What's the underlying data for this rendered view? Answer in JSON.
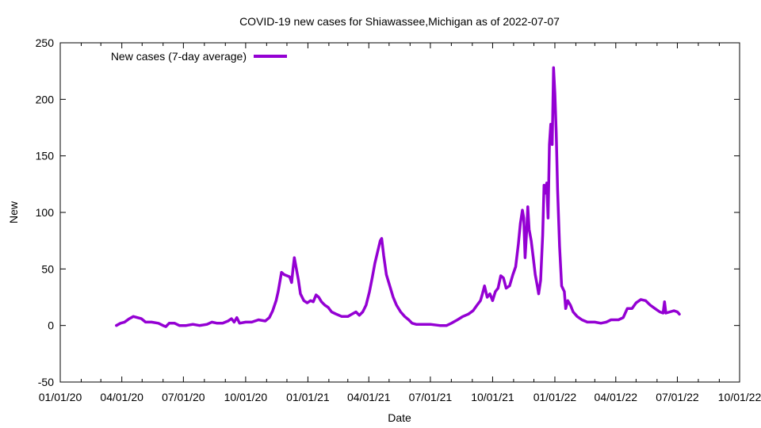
{
  "chart_data": {
    "type": "line",
    "title": "COVID-19 new cases for Shiawassee,Michigan as of 2022-07-07",
    "xlabel": "Date",
    "ylabel": "New",
    "xlim": [
      "2020-01-01",
      "2022-10-01"
    ],
    "ylim": [
      -50,
      250
    ],
    "x_ticks": [
      "01/01/20",
      "04/01/20",
      "07/01/20",
      "10/01/20",
      "01/01/21",
      "04/01/21",
      "07/01/21",
      "10/01/21",
      "01/01/22",
      "04/01/22",
      "07/01/22",
      "10/01/22"
    ],
    "y_ticks": [
      "-50",
      "0",
      "50",
      "100",
      "150",
      "200",
      "250"
    ],
    "grid": false,
    "legend_position": "top-left",
    "series": [
      {
        "name": "New cases (7-day average)",
        "color": "#9400d3",
        "points": [
          [
            "2020-03-24",
            0
          ],
          [
            "2020-03-30",
            2
          ],
          [
            "2020-04-05",
            3
          ],
          [
            "2020-04-12",
            6
          ],
          [
            "2020-04-18",
            8
          ],
          [
            "2020-04-24",
            7
          ],
          [
            "2020-04-30",
            6
          ],
          [
            "2020-05-06",
            3
          ],
          [
            "2020-05-15",
            3
          ],
          [
            "2020-05-25",
            2
          ],
          [
            "2020-06-01",
            0
          ],
          [
            "2020-06-05",
            -1
          ],
          [
            "2020-06-10",
            2
          ],
          [
            "2020-06-18",
            2
          ],
          [
            "2020-06-25",
            0
          ],
          [
            "2020-07-05",
            0
          ],
          [
            "2020-07-15",
            1
          ],
          [
            "2020-07-25",
            0
          ],
          [
            "2020-08-05",
            1
          ],
          [
            "2020-08-12",
            3
          ],
          [
            "2020-08-20",
            2
          ],
          [
            "2020-08-28",
            2
          ],
          [
            "2020-09-05",
            4
          ],
          [
            "2020-09-10",
            6
          ],
          [
            "2020-09-14",
            3
          ],
          [
            "2020-09-18",
            7
          ],
          [
            "2020-09-22",
            2
          ],
          [
            "2020-10-01",
            3
          ],
          [
            "2020-10-10",
            3
          ],
          [
            "2020-10-20",
            5
          ],
          [
            "2020-10-30",
            4
          ],
          [
            "2020-11-05",
            7
          ],
          [
            "2020-11-10",
            13
          ],
          [
            "2020-11-15",
            22
          ],
          [
            "2020-11-18",
            30
          ],
          [
            "2020-11-21",
            40
          ],
          [
            "2020-11-23",
            47
          ],
          [
            "2020-11-27",
            45
          ],
          [
            "2020-12-01",
            44
          ],
          [
            "2020-12-05",
            43
          ],
          [
            "2020-12-08",
            38
          ],
          [
            "2020-12-10",
            50
          ],
          [
            "2020-12-12",
            60
          ],
          [
            "2020-12-15",
            50
          ],
          [
            "2020-12-18",
            40
          ],
          [
            "2020-12-21",
            28
          ],
          [
            "2020-12-26",
            22
          ],
          [
            "2020-12-31",
            20
          ],
          [
            "2021-01-05",
            22
          ],
          [
            "2021-01-09",
            21
          ],
          [
            "2021-01-13",
            27
          ],
          [
            "2021-01-17",
            25
          ],
          [
            "2021-01-21",
            21
          ],
          [
            "2021-01-26",
            18
          ],
          [
            "2021-01-31",
            16
          ],
          [
            "2021-02-05",
            12
          ],
          [
            "2021-02-12",
            10
          ],
          [
            "2021-02-20",
            8
          ],
          [
            "2021-03-01",
            8
          ],
          [
            "2021-03-07",
            10
          ],
          [
            "2021-03-13",
            12
          ],
          [
            "2021-03-18",
            9
          ],
          [
            "2021-03-23",
            12
          ],
          [
            "2021-03-28",
            18
          ],
          [
            "2021-04-02",
            30
          ],
          [
            "2021-04-06",
            42
          ],
          [
            "2021-04-10",
            55
          ],
          [
            "2021-04-14",
            65
          ],
          [
            "2021-04-18",
            75
          ],
          [
            "2021-04-20",
            77
          ],
          [
            "2021-04-23",
            62
          ],
          [
            "2021-04-27",
            45
          ],
          [
            "2021-05-02",
            35
          ],
          [
            "2021-05-07",
            25
          ],
          [
            "2021-05-12",
            18
          ],
          [
            "2021-05-18",
            12
          ],
          [
            "2021-05-24",
            8
          ],
          [
            "2021-05-30",
            5
          ],
          [
            "2021-06-04",
            2
          ],
          [
            "2021-06-10",
            1
          ],
          [
            "2021-06-20",
            1
          ],
          [
            "2021-07-01",
            1
          ],
          [
            "2021-07-15",
            0
          ],
          [
            "2021-07-25",
            0
          ],
          [
            "2021-08-01",
            2
          ],
          [
            "2021-08-10",
            5
          ],
          [
            "2021-08-18",
            8
          ],
          [
            "2021-08-26",
            10
          ],
          [
            "2021-09-02",
            13
          ],
          [
            "2021-09-08",
            18
          ],
          [
            "2021-09-13",
            22
          ],
          [
            "2021-09-16",
            28
          ],
          [
            "2021-09-19",
            35
          ],
          [
            "2021-09-23",
            25
          ],
          [
            "2021-09-27",
            28
          ],
          [
            "2021-10-01",
            22
          ],
          [
            "2021-10-05",
            30
          ],
          [
            "2021-10-09",
            33
          ],
          [
            "2021-10-13",
            44
          ],
          [
            "2021-10-17",
            42
          ],
          [
            "2021-10-21",
            33
          ],
          [
            "2021-10-26",
            35
          ],
          [
            "2021-10-31",
            45
          ],
          [
            "2021-11-04",
            52
          ],
          [
            "2021-11-08",
            72
          ],
          [
            "2021-11-11",
            90
          ],
          [
            "2021-11-14",
            102
          ],
          [
            "2021-11-16",
            95
          ],
          [
            "2021-11-18",
            60
          ],
          [
            "2021-11-20",
            80
          ],
          [
            "2021-11-22",
            105
          ],
          [
            "2021-11-24",
            85
          ],
          [
            "2021-11-27",
            75
          ],
          [
            "2021-11-30",
            60
          ],
          [
            "2021-12-03",
            45
          ],
          [
            "2021-12-06",
            35
          ],
          [
            "2021-12-08",
            28
          ],
          [
            "2021-12-11",
            40
          ],
          [
            "2021-12-14",
            80
          ],
          [
            "2021-12-16",
            124
          ],
          [
            "2021-12-18",
            117
          ],
          [
            "2021-12-20",
            126
          ],
          [
            "2021-12-22",
            95
          ],
          [
            "2021-12-24",
            160
          ],
          [
            "2021-12-26",
            178
          ],
          [
            "2021-12-28",
            160
          ],
          [
            "2021-12-30",
            228
          ],
          [
            "2022-01-01",
            205
          ],
          [
            "2022-01-03",
            170
          ],
          [
            "2022-01-05",
            120
          ],
          [
            "2022-01-08",
            70
          ],
          [
            "2022-01-11",
            35
          ],
          [
            "2022-01-15",
            30
          ],
          [
            "2022-01-17",
            15
          ],
          [
            "2022-01-20",
            22
          ],
          [
            "2022-01-24",
            18
          ],
          [
            "2022-01-28",
            12
          ],
          [
            "2022-02-03",
            8
          ],
          [
            "2022-02-10",
            5
          ],
          [
            "2022-02-18",
            3
          ],
          [
            "2022-03-01",
            3
          ],
          [
            "2022-03-10",
            2
          ],
          [
            "2022-03-18",
            3
          ],
          [
            "2022-03-25",
            5
          ],
          [
            "2022-04-05",
            5
          ],
          [
            "2022-04-12",
            7
          ],
          [
            "2022-04-18",
            15
          ],
          [
            "2022-04-25",
            15
          ],
          [
            "2022-05-01",
            20
          ],
          [
            "2022-05-08",
            23
          ],
          [
            "2022-05-15",
            22
          ],
          [
            "2022-05-22",
            18
          ],
          [
            "2022-05-29",
            15
          ],
          [
            "2022-06-05",
            12
          ],
          [
            "2022-06-10",
            11
          ],
          [
            "2022-06-12",
            21
          ],
          [
            "2022-06-14",
            11
          ],
          [
            "2022-06-20",
            12
          ],
          [
            "2022-06-26",
            13
          ],
          [
            "2022-07-01",
            12
          ],
          [
            "2022-07-04",
            10
          ]
        ]
      }
    ]
  }
}
